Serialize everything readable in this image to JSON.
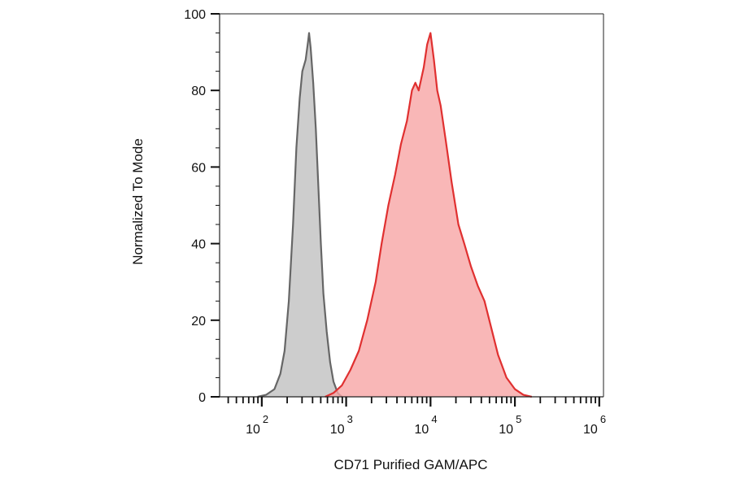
{
  "chart_data": {
    "type": "area",
    "xlabel": "CD71 Purified GAM/APC",
    "ylabel": "Normalized To Mode",
    "x_scale": "log",
    "xlim": [
      1.5,
      6.05
    ],
    "ylim": [
      0,
      100
    ],
    "y_ticks": [
      0,
      20,
      40,
      60,
      80,
      100
    ],
    "x_tick_labels": [
      {
        "base": "10",
        "exp": "2",
        "value": 2
      },
      {
        "base": "10",
        "exp": "3",
        "value": 3
      },
      {
        "base": "10",
        "exp": "4",
        "value": 4
      },
      {
        "base": "10",
        "exp": "5",
        "value": 5
      },
      {
        "base": "10",
        "exp": "6",
        "value": 6
      }
    ],
    "grid": false,
    "series": [
      {
        "color": "#666666",
        "fill": "#c0c0c0",
        "points": [
          [
            1.95,
            0
          ],
          [
            2.05,
            0.5
          ],
          [
            2.15,
            2
          ],
          [
            2.22,
            6
          ],
          [
            2.27,
            12
          ],
          [
            2.32,
            25
          ],
          [
            2.37,
            45
          ],
          [
            2.41,
            65
          ],
          [
            2.45,
            78
          ],
          [
            2.48,
            85
          ],
          [
            2.52,
            88
          ],
          [
            2.55,
            93
          ],
          [
            2.56,
            95
          ],
          [
            2.58,
            91
          ],
          [
            2.61,
            82
          ],
          [
            2.64,
            70
          ],
          [
            2.67,
            55
          ],
          [
            2.7,
            40
          ],
          [
            2.73,
            27
          ],
          [
            2.77,
            17
          ],
          [
            2.81,
            9
          ],
          [
            2.85,
            4
          ],
          [
            2.9,
            1
          ],
          [
            2.95,
            0
          ]
        ]
      },
      {
        "color": "#e03030",
        "fill": "#f7a5a5",
        "points": [
          [
            2.75,
            0
          ],
          [
            2.85,
            1
          ],
          [
            2.95,
            3
          ],
          [
            3.05,
            7
          ],
          [
            3.15,
            12
          ],
          [
            3.25,
            20
          ],
          [
            3.35,
            30
          ],
          [
            3.42,
            40
          ],
          [
            3.5,
            50
          ],
          [
            3.58,
            58
          ],
          [
            3.65,
            66
          ],
          [
            3.72,
            72
          ],
          [
            3.78,
            80
          ],
          [
            3.82,
            82
          ],
          [
            3.86,
            80
          ],
          [
            3.92,
            86
          ],
          [
            3.96,
            92
          ],
          [
            4.0,
            95
          ],
          [
            4.04,
            88
          ],
          [
            4.08,
            80
          ],
          [
            4.12,
            76
          ],
          [
            4.18,
            67
          ],
          [
            4.25,
            56
          ],
          [
            4.33,
            45
          ],
          [
            4.4,
            40
          ],
          [
            4.48,
            34
          ],
          [
            4.56,
            29
          ],
          [
            4.64,
            25
          ],
          [
            4.72,
            18
          ],
          [
            4.8,
            11
          ],
          [
            4.9,
            5
          ],
          [
            5.0,
            2
          ],
          [
            5.1,
            0.5
          ],
          [
            5.2,
            0
          ]
        ]
      }
    ]
  }
}
